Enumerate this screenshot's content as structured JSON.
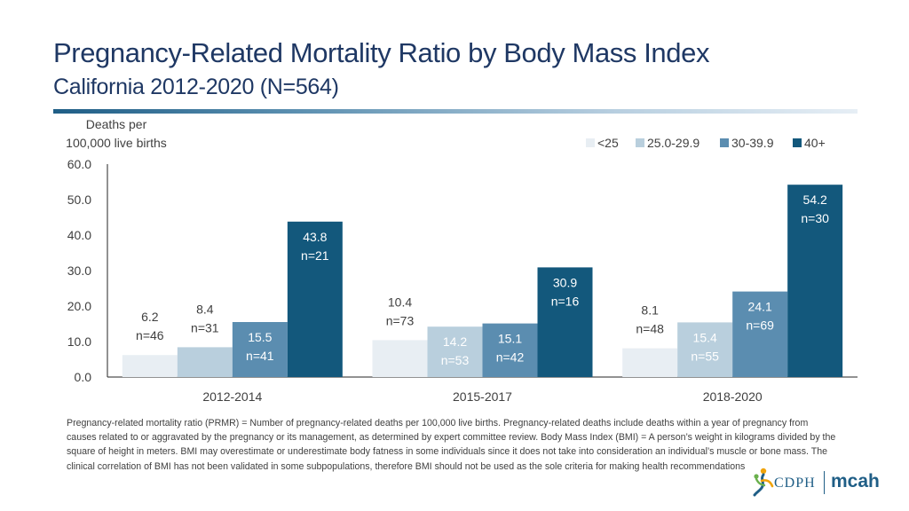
{
  "page": {
    "title": "Pregnancy-Related Mortality Ratio by Body Mass Index",
    "subtitle": "California 2012-2020 (N=564)",
    "footnote": "Pregnancy-related mortality ratio (PRMR) = Number of pregnancy-related deaths per 100,000 live births. Pregnancy-related deaths include deaths within a year of pregnancy from causes related to or aggravated by the pregnancy or its management, as determined by expert committee review. Body Mass Index (BMI) = A person’s weight in kilograms divided by the square of height in meters. BMI may overestimate or underestimate body fatness in some individuals since it does not take into consideration an individual’s muscle or bone mass. The clinical correlation of BMI has not been validated in some subpopulations, therefore BMI should not be used as the sole criteria for making health recommendations",
    "logo": {
      "left": "CDPH",
      "right": "mcah"
    }
  },
  "chart_data": {
    "type": "bar",
    "title": "",
    "ylabel_lines": [
      "Deaths per",
      "100,000 live births"
    ],
    "xlabel": "",
    "ylim": [
      0,
      60
    ],
    "yticks": [
      0,
      10,
      20,
      30,
      40,
      50,
      60
    ],
    "ytick_labels": [
      "0.0",
      "10.0",
      "20.0",
      "30.0",
      "40.0",
      "50.0",
      "60.0"
    ],
    "categories": [
      "2012-2014",
      "2015-2017",
      "2018-2020"
    ],
    "legend_position": "top-right",
    "series": [
      {
        "name": "<25",
        "color": "#e8eef3",
        "values": [
          6.2,
          10.4,
          8.1
        ],
        "labels": [
          "6.2",
          "10.4",
          "8.1"
        ],
        "n": [
          "n=46",
          "n=73",
          "n=48"
        ]
      },
      {
        "name": "25.0-29.9",
        "color": "#b9cfdd",
        "values": [
          8.4,
          14.2,
          15.4
        ],
        "labels": [
          "8.4",
          "14.2",
          "15.4"
        ],
        "n": [
          "n=31",
          "n=53",
          "n=55"
        ]
      },
      {
        "name": "30-39.9",
        "color": "#5b8db0",
        "values": [
          15.5,
          15.1,
          24.1
        ],
        "labels": [
          "15.5",
          "15.1",
          "24.1"
        ],
        "n": [
          "n=41",
          "n=42",
          "n=69"
        ]
      },
      {
        "name": "40+",
        "color": "#13587c",
        "values": [
          43.8,
          30.9,
          54.2
        ],
        "labels": [
          "43.8",
          "30.9",
          "54.2"
        ],
        "n": [
          "n=21",
          "n=16",
          "n=30"
        ]
      }
    ],
    "grid": false
  }
}
